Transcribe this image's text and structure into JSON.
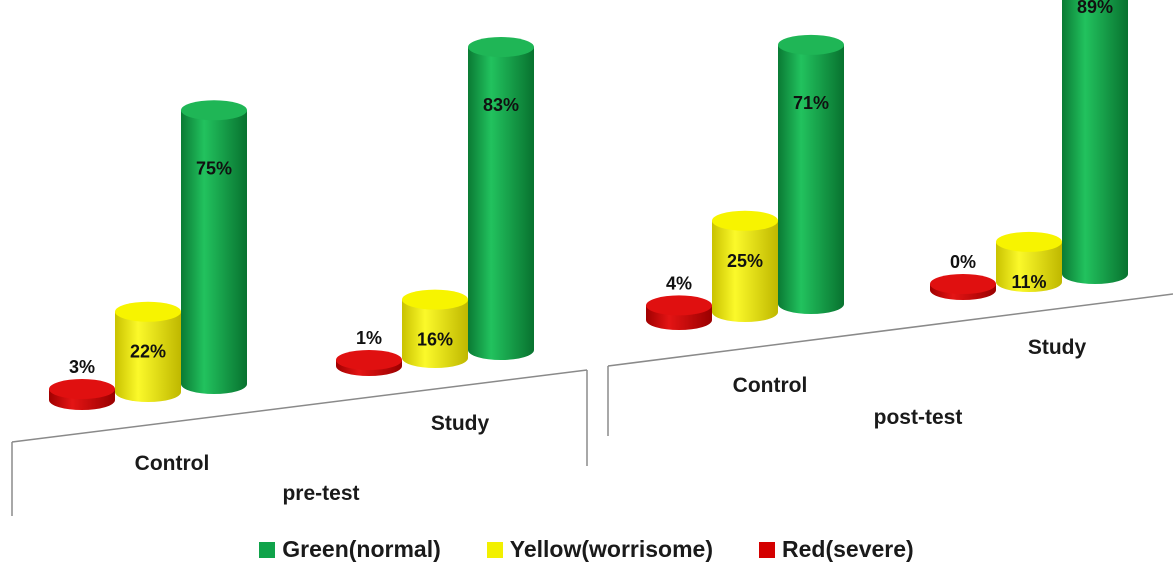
{
  "chart_data": {
    "type": "bar",
    "style": "3d-cylinder",
    "groups": [
      {
        "label": "pre-test",
        "categories": [
          "Control",
          "Study"
        ]
      },
      {
        "label": "post-test",
        "categories": [
          "Control",
          "Study"
        ]
      }
    ],
    "series": [
      {
        "name": "Green(normal)",
        "color": "#10a34a",
        "values": [
          75,
          83,
          71,
          89
        ],
        "labels": [
          "75%",
          "83%",
          "71%",
          "89%"
        ]
      },
      {
        "name": "Yellow(worrisome)",
        "color": "#f2f000",
        "values": [
          22,
          16,
          25,
          11
        ],
        "labels": [
          "22%",
          "16%",
          "25%",
          "11%"
        ]
      },
      {
        "name": "Red(severe)",
        "color": "#d40000",
        "values": [
          3,
          1,
          4,
          0
        ],
        "labels": [
          "3%",
          "1%",
          "4%",
          "0%"
        ]
      }
    ],
    "legend_position": "bottom",
    "value_unit": "%"
  }
}
